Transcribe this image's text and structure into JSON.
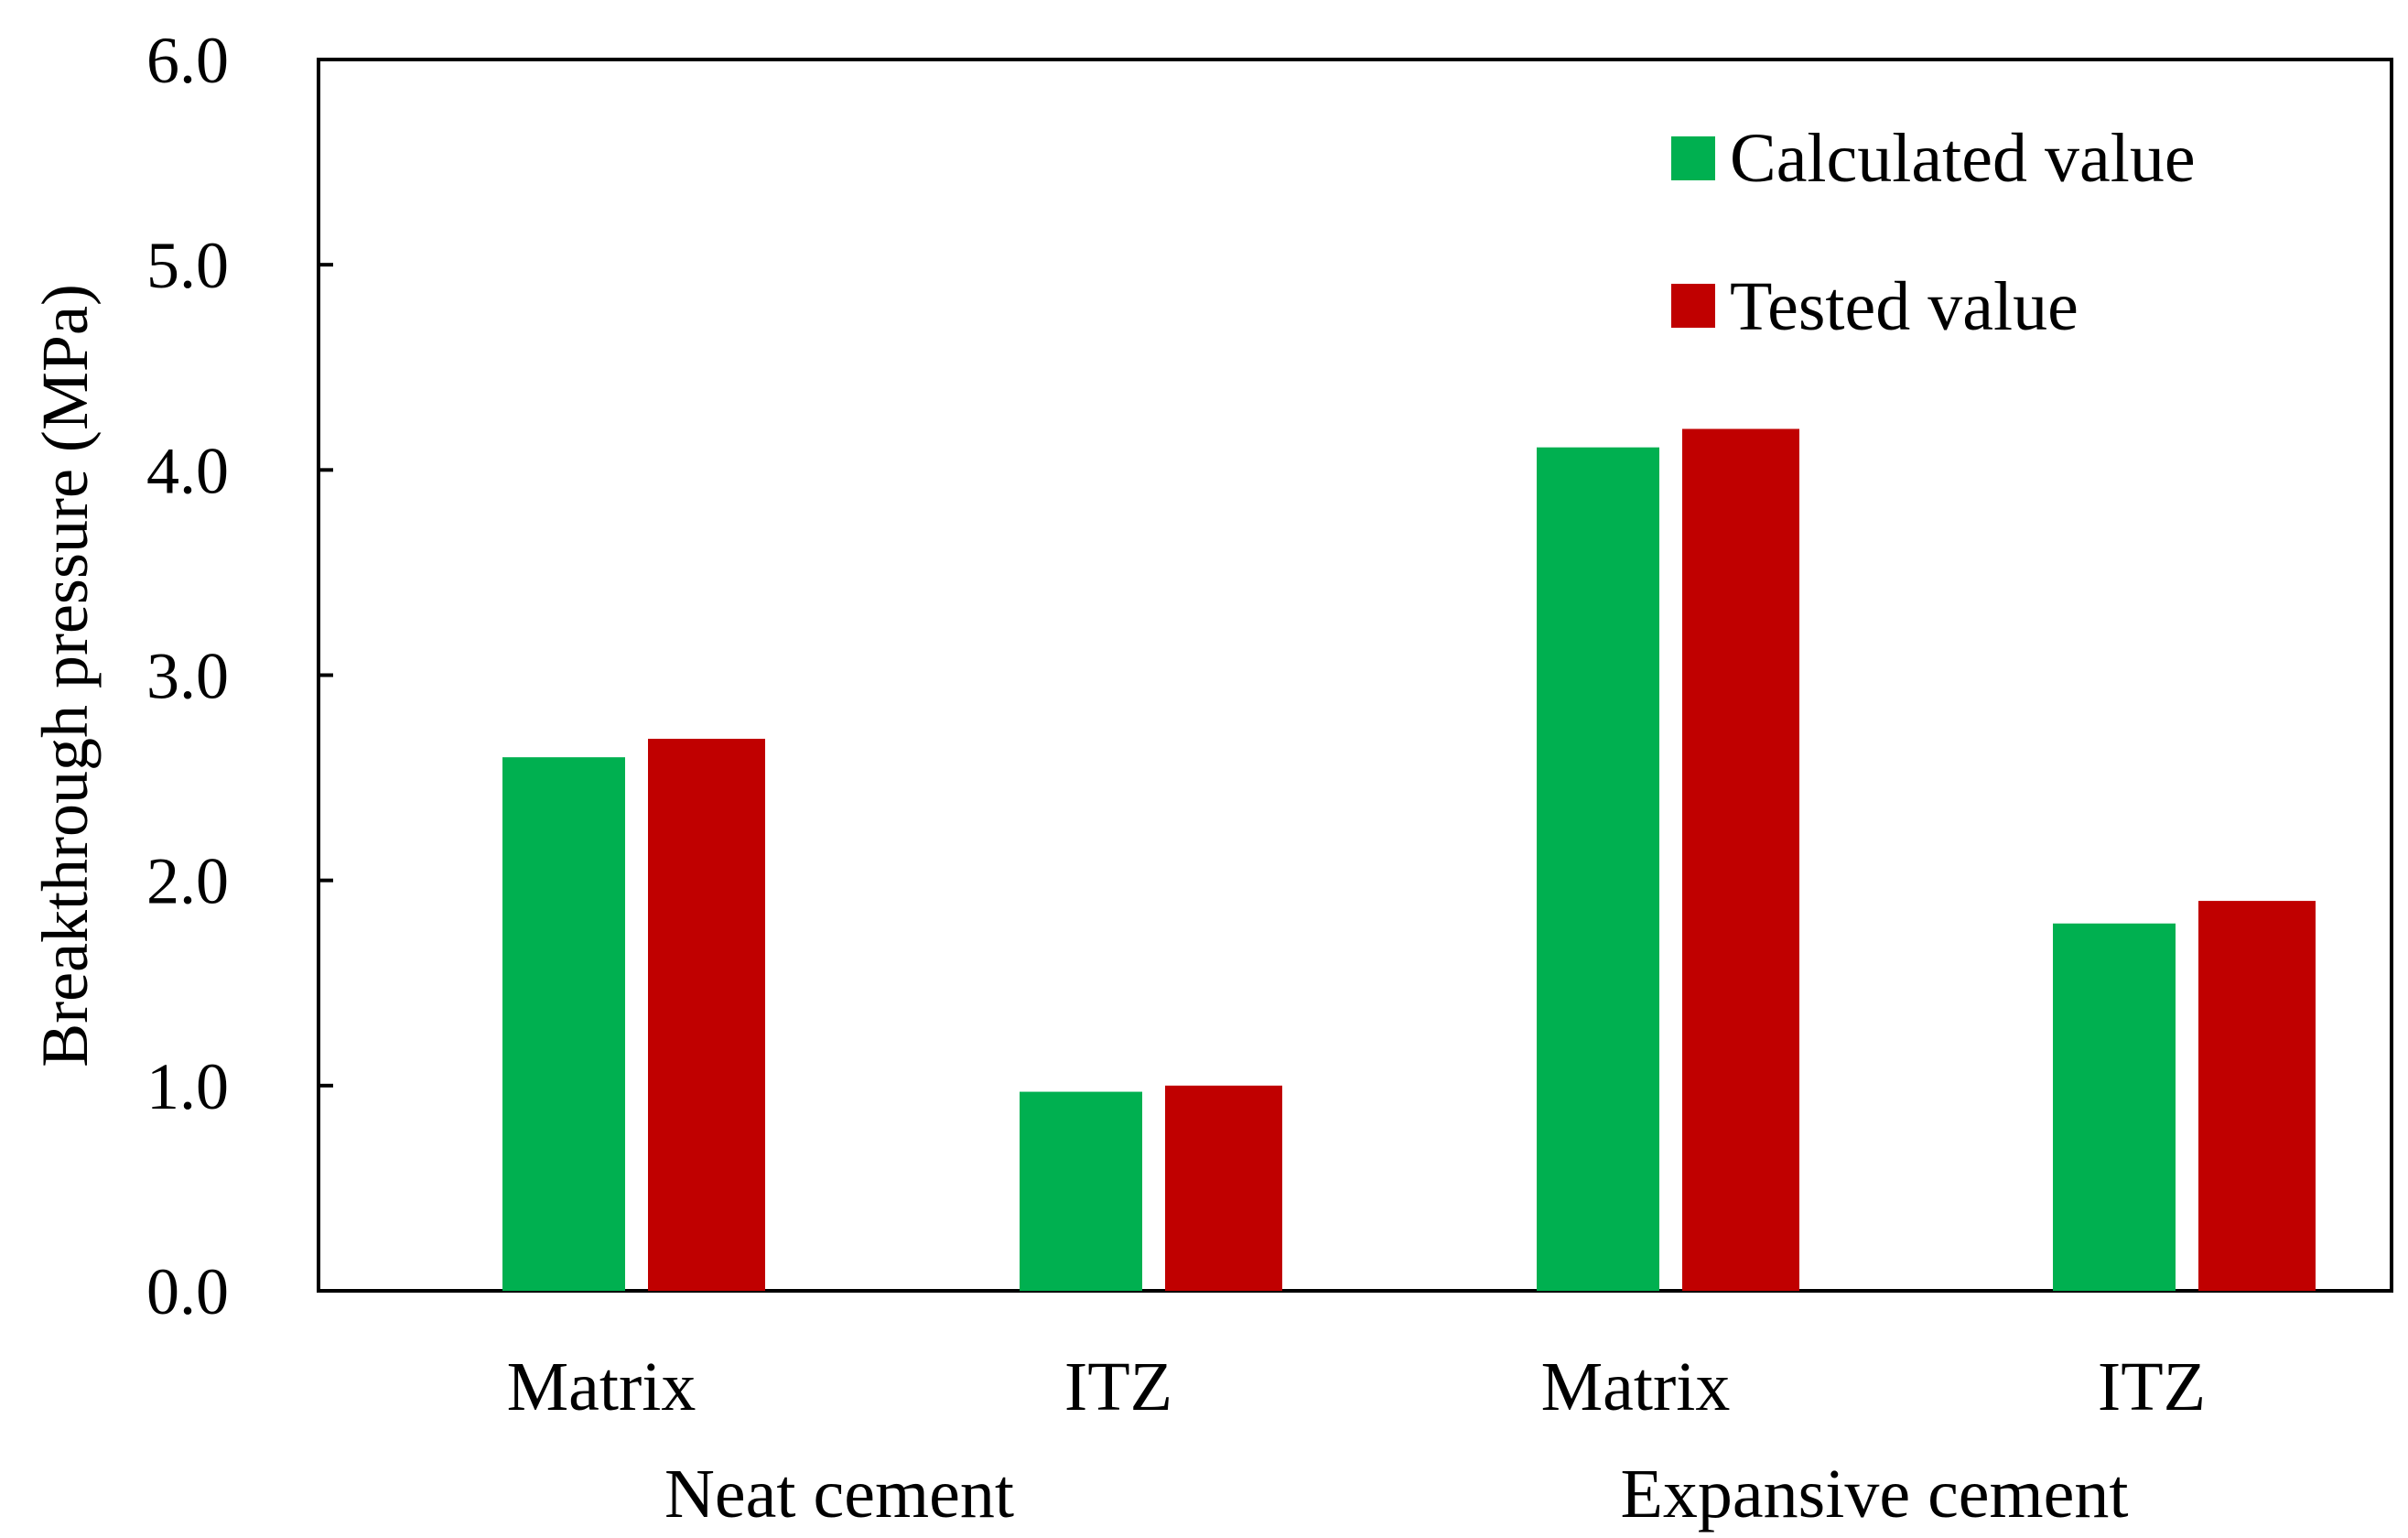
{
  "chart_data": {
    "type": "bar",
    "title": "",
    "xlabel": "",
    "ylabel": "Breakthrough pressure (MPa)",
    "ylim": [
      0,
      6
    ],
    "yticks": [
      "0.0",
      "1.0",
      "2.0",
      "3.0",
      "4.0",
      "5.0",
      "6.0"
    ],
    "categories": [
      "Matrix",
      "ITZ",
      "Matrix",
      "ITZ"
    ],
    "groups": [
      {
        "label": "Neat cement",
        "categories": [
          "Matrix",
          "ITZ"
        ]
      },
      {
        "label": "Expansive cement",
        "categories": [
          "Matrix",
          "ITZ"
        ]
      }
    ],
    "series": [
      {
        "name": "Calculated value",
        "color": "#00b050",
        "values": [
          2.6,
          0.97,
          4.11,
          1.79
        ]
      },
      {
        "name": "Tested value",
        "color": "#c00000",
        "values": [
          2.69,
          1.0,
          4.2,
          1.9
        ]
      }
    ],
    "legend_position": "top-right",
    "grid": false
  }
}
